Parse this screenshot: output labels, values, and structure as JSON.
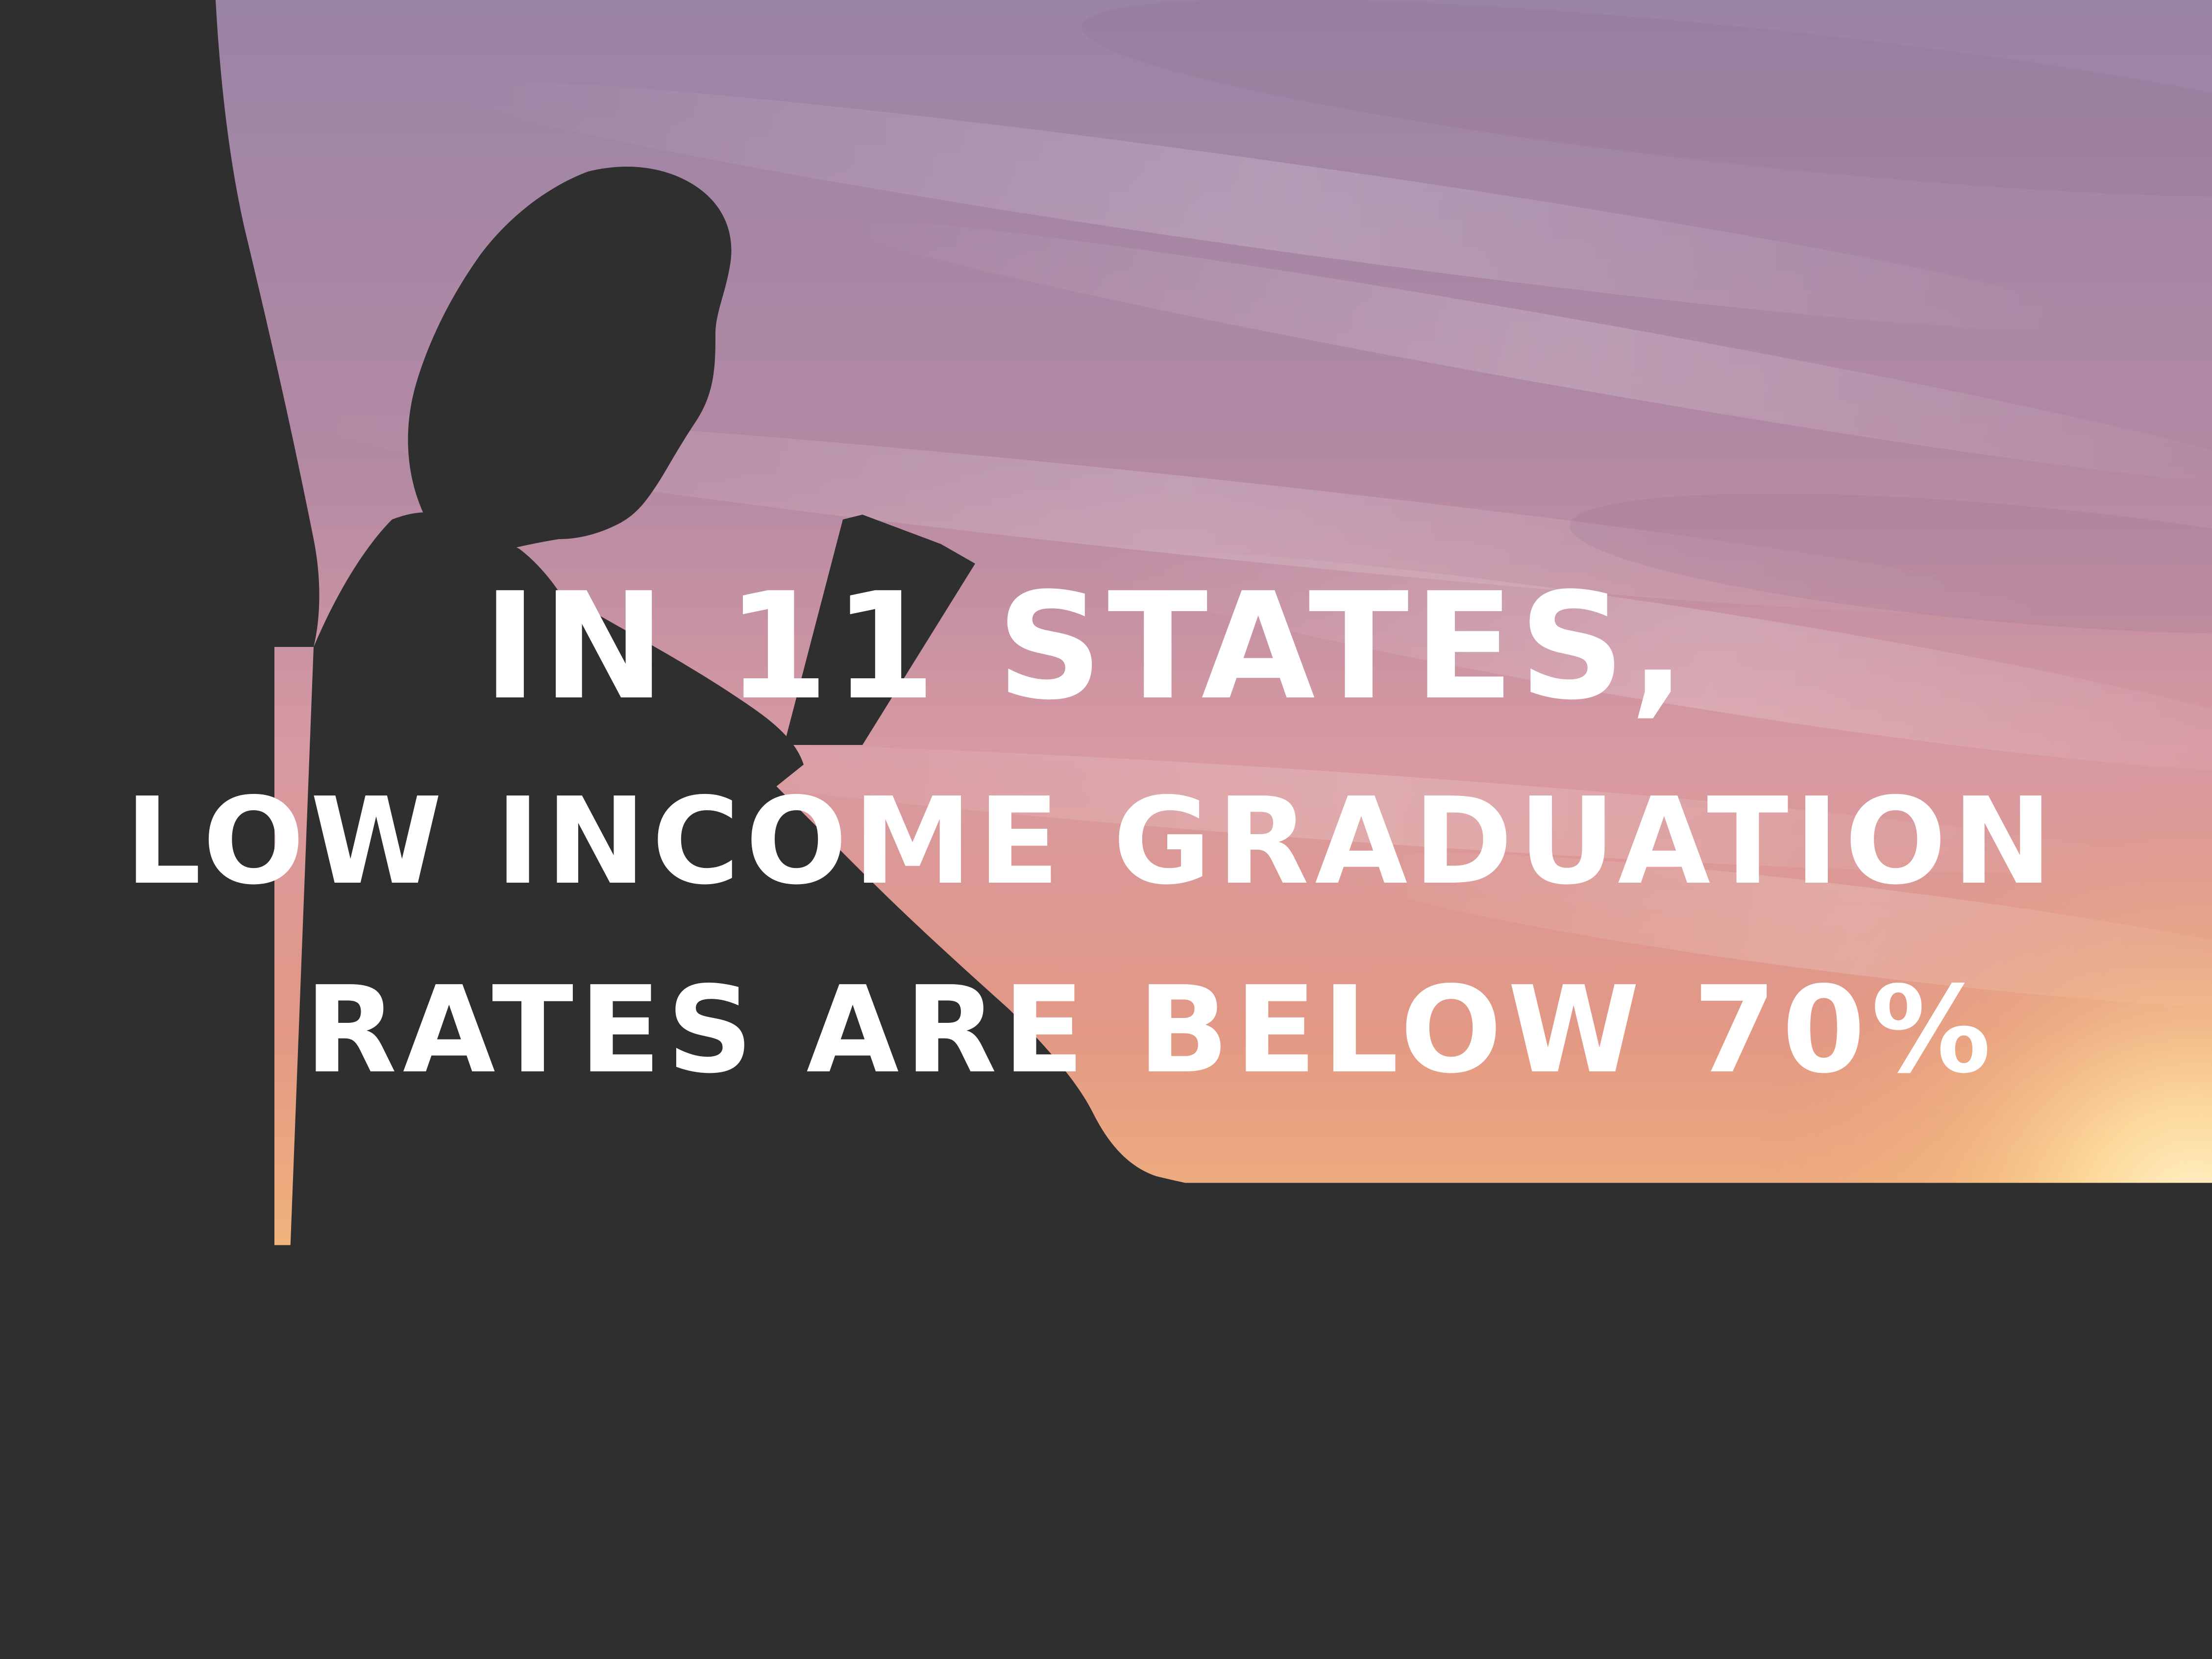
{
  "image": {
    "colors": {
      "sky_top": "#9a84a6",
      "sky_mid": "#c592a3",
      "sky_low": "#e39c86",
      "horizon_glow": "#f7c27a",
      "sun": "#fff2c6",
      "silhouette": "#2f2f2f",
      "text": "#ffffff"
    },
    "headline": {
      "line1": "IN 11 STATES,",
      "line2": "LOW INCOME GRADUATION",
      "line3": "RATES ARE BELOW 70%"
    }
  }
}
